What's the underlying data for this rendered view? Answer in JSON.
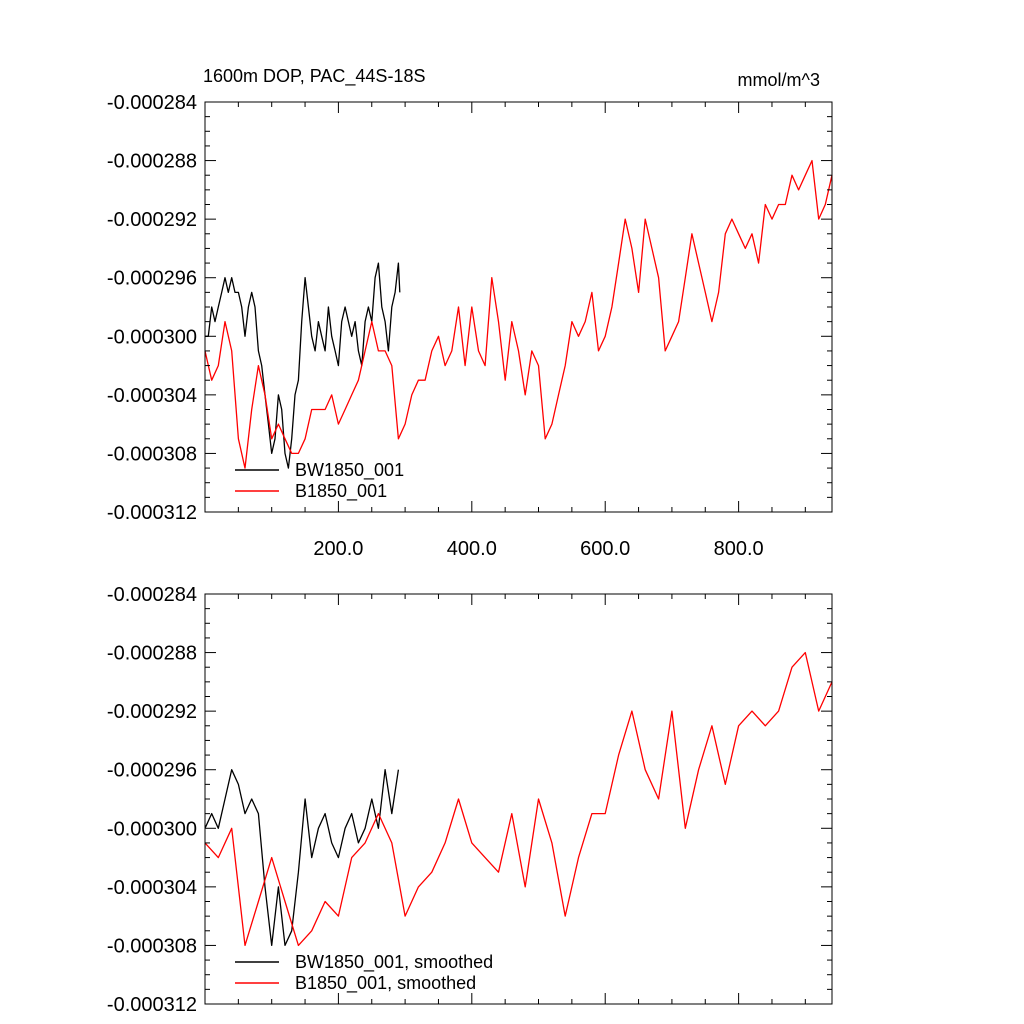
{
  "chart_data": [
    {
      "type": "line",
      "title": "1600m DOP, PAC_44S-18S",
      "units": "mmol/m^3",
      "xlim": [
        0,
        940
      ],
      "ylim": [
        -0.000312,
        -0.000284
      ],
      "xticks": [
        200,
        400,
        600,
        800
      ],
      "xtick_labels": [
        "200.0",
        "400.0",
        "600.0",
        "800.0"
      ],
      "yticks": [
        -0.000284,
        -0.000288,
        -0.000292,
        -0.000296,
        -0.0003,
        -0.000304,
        -0.000308,
        -0.000312
      ],
      "ytick_labels": [
        "-0.000284",
        "-0.000288",
        "-0.000292",
        "-0.000296",
        "-0.000300",
        "-0.000304",
        "-0.000308",
        "-0.000312"
      ],
      "grid": false,
      "legend_position": "bottom-left",
      "series": [
        {
          "name": "BW1850_001",
          "color": "#000000",
          "x": [
            0,
            5,
            10,
            15,
            20,
            25,
            30,
            35,
            40,
            45,
            50,
            55,
            60,
            65,
            70,
            75,
            80,
            85,
            90,
            95,
            100,
            105,
            110,
            115,
            120,
            125,
            130,
            135,
            140,
            145,
            150,
            155,
            160,
            165,
            170,
            175,
            180,
            185,
            190,
            195,
            200,
            205,
            210,
            215,
            220,
            225,
            230,
            235,
            240,
            245,
            250,
            255,
            260,
            265,
            270,
            275,
            280,
            285,
            290,
            292
          ],
          "values": [
            -0.0003,
            -0.0003,
            -0.000298,
            -0.000299,
            -0.000298,
            -0.000297,
            -0.000296,
            -0.000297,
            -0.000296,
            -0.000297,
            -0.000297,
            -0.000298,
            -0.0003,
            -0.000298,
            -0.000297,
            -0.000298,
            -0.000301,
            -0.000302,
            -0.000304,
            -0.000306,
            -0.000308,
            -0.000307,
            -0.000304,
            -0.000305,
            -0.000308,
            -0.000309,
            -0.000307,
            -0.000304,
            -0.000303,
            -0.000299,
            -0.000296,
            -0.000298,
            -0.0003,
            -0.000301,
            -0.000299,
            -0.0003,
            -0.000301,
            -0.000298,
            -0.0003,
            -0.000301,
            -0.000302,
            -0.000299,
            -0.000298,
            -0.000299,
            -0.0003,
            -0.000299,
            -0.000301,
            -0.000302,
            -0.000299,
            -0.000298,
            -0.000299,
            -0.000296,
            -0.000295,
            -0.000298,
            -0.000299,
            -0.000301,
            -0.000298,
            -0.000297,
            -0.000295,
            -0.000297
          ]
        },
        {
          "name": "B1850_001",
          "color": "#ff0000",
          "x": [
            0,
            10,
            20,
            30,
            40,
            50,
            60,
            70,
            80,
            90,
            100,
            110,
            120,
            130,
            140,
            150,
            160,
            170,
            180,
            190,
            200,
            210,
            220,
            230,
            240,
            250,
            260,
            270,
            280,
            290,
            300,
            310,
            320,
            330,
            340,
            350,
            360,
            370,
            380,
            390,
            400,
            410,
            420,
            430,
            440,
            450,
            460,
            470,
            480,
            490,
            500,
            510,
            520,
            530,
            540,
            550,
            560,
            570,
            580,
            590,
            600,
            610,
            620,
            630,
            640,
            650,
            660,
            670,
            680,
            690,
            700,
            710,
            720,
            730,
            740,
            750,
            760,
            770,
            780,
            790,
            800,
            810,
            820,
            830,
            840,
            850,
            860,
            870,
            880,
            890,
            900,
            910,
            920,
            930,
            940
          ],
          "values": [
            -0.000301,
            -0.000303,
            -0.000302,
            -0.000299,
            -0.000301,
            -0.000307,
            -0.000309,
            -0.000305,
            -0.000302,
            -0.000304,
            -0.000307,
            -0.000306,
            -0.000307,
            -0.000308,
            -0.000308,
            -0.000307,
            -0.000305,
            -0.000305,
            -0.000305,
            -0.000304,
            -0.000306,
            -0.000305,
            -0.000304,
            -0.000303,
            -0.000301,
            -0.000299,
            -0.000301,
            -0.000301,
            -0.000302,
            -0.000307,
            -0.000306,
            -0.000304,
            -0.000303,
            -0.000303,
            -0.000301,
            -0.0003,
            -0.000302,
            -0.000301,
            -0.000298,
            -0.000302,
            -0.000298,
            -0.000301,
            -0.000302,
            -0.000296,
            -0.000299,
            -0.000303,
            -0.000299,
            -0.000301,
            -0.000304,
            -0.000301,
            -0.000302,
            -0.000307,
            -0.000306,
            -0.000304,
            -0.000302,
            -0.000299,
            -0.0003,
            -0.000299,
            -0.000297,
            -0.000301,
            -0.0003,
            -0.000298,
            -0.000295,
            -0.000292,
            -0.000294,
            -0.000297,
            -0.000292,
            -0.000294,
            -0.000296,
            -0.000301,
            -0.0003,
            -0.000299,
            -0.000296,
            -0.000293,
            -0.000295,
            -0.000297,
            -0.000299,
            -0.000297,
            -0.000293,
            -0.000292,
            -0.000293,
            -0.000294,
            -0.000293,
            -0.000295,
            -0.000291,
            -0.000292,
            -0.000291,
            -0.000291,
            -0.000289,
            -0.00029,
            -0.000289,
            -0.000288,
            -0.000292,
            -0.000291,
            -0.000289
          ]
        }
      ]
    },
    {
      "type": "line",
      "title": "",
      "xlim": [
        0,
        940
      ],
      "ylim": [
        -0.000312,
        -0.000284
      ],
      "xticks": [
        200,
        400,
        600,
        800
      ],
      "yticks": [
        -0.000284,
        -0.000288,
        -0.000292,
        -0.000296,
        -0.0003,
        -0.000304,
        -0.000308,
        -0.000312
      ],
      "ytick_labels": [
        "-0.000284",
        "-0.000288",
        "-0.000292",
        "-0.000296",
        "-0.000300",
        "-0.000304",
        "-0.000308",
        "-0.000312"
      ],
      "grid": false,
      "legend_position": "bottom-left",
      "series": [
        {
          "name": "BW1850_001, smoothed",
          "color": "#000000",
          "x": [
            0,
            10,
            20,
            30,
            40,
            50,
            60,
            70,
            80,
            90,
            100,
            110,
            120,
            130,
            140,
            150,
            160,
            170,
            180,
            190,
            200,
            210,
            220,
            230,
            240,
            250,
            260,
            270,
            280,
            290
          ],
          "values": [
            -0.0003,
            -0.000299,
            -0.0003,
            -0.000298,
            -0.000296,
            -0.000297,
            -0.000299,
            -0.000298,
            -0.000299,
            -0.000304,
            -0.000308,
            -0.000304,
            -0.000308,
            -0.000307,
            -0.000303,
            -0.000298,
            -0.000302,
            -0.0003,
            -0.000299,
            -0.000301,
            -0.000302,
            -0.0003,
            -0.000299,
            -0.000301,
            -0.0003,
            -0.000298,
            -0.0003,
            -0.000296,
            -0.000299,
            -0.000296
          ]
        },
        {
          "name": "B1850_001, smoothed",
          "color": "#ff0000",
          "x": [
            0,
            20,
            40,
            60,
            80,
            100,
            120,
            140,
            160,
            180,
            200,
            220,
            240,
            260,
            280,
            300,
            320,
            340,
            360,
            380,
            400,
            420,
            440,
            460,
            480,
            500,
            520,
            540,
            560,
            580,
            600,
            620,
            640,
            660,
            680,
            700,
            720,
            740,
            760,
            780,
            800,
            820,
            840,
            860,
            880,
            900,
            920,
            940
          ],
          "values": [
            -0.000301,
            -0.000302,
            -0.0003,
            -0.000308,
            -0.000305,
            -0.000302,
            -0.000305,
            -0.000308,
            -0.000307,
            -0.000305,
            -0.000306,
            -0.000302,
            -0.000301,
            -0.000299,
            -0.000301,
            -0.000306,
            -0.000304,
            -0.000303,
            -0.000301,
            -0.000298,
            -0.000301,
            -0.000302,
            -0.000303,
            -0.000299,
            -0.000304,
            -0.000298,
            -0.000301,
            -0.000306,
            -0.000302,
            -0.000299,
            -0.000299,
            -0.000295,
            -0.000292,
            -0.000296,
            -0.000298,
            -0.000292,
            -0.0003,
            -0.000296,
            -0.000293,
            -0.000297,
            -0.000293,
            -0.000292,
            -0.000293,
            -0.000292,
            -0.000289,
            -0.000288,
            -0.000292,
            -0.00029
          ]
        }
      ]
    }
  ]
}
